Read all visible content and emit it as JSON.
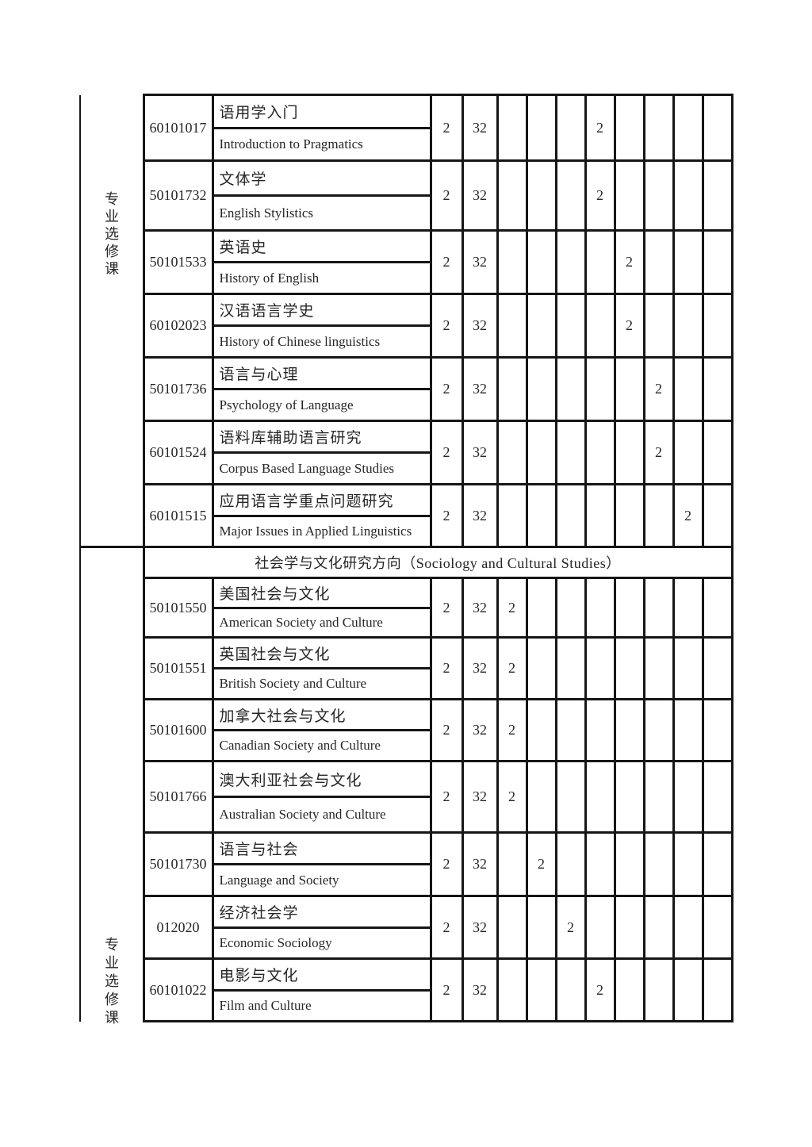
{
  "table": {
    "credits_value": "2",
    "hours_value": "32",
    "sections": [
      {
        "category_label": "专业选修课",
        "rows": [
          {
            "code": "60101017",
            "name_zh": "语用学入门",
            "name_en": "Introduction to Pragmatics",
            "credits": "2",
            "hours": "32",
            "sem": [
              "",
              "",
              "",
              "2",
              "",
              "",
              "",
              ""
            ]
          },
          {
            "code": "50101732",
            "name_zh": "文体学",
            "name_en": "English Stylistics",
            "credits": "2",
            "hours": "32",
            "sem": [
              "",
              "",
              "",
              "2",
              "",
              "",
              "",
              ""
            ]
          },
          {
            "code": "50101533",
            "name_zh": "英语史",
            "name_en": "History of English",
            "credits": "2",
            "hours": "32",
            "sem": [
              "",
              "",
              "",
              "",
              "2",
              "",
              "",
              ""
            ]
          },
          {
            "code": "60102023",
            "name_zh": "汉语语言学史",
            "name_en": "History of Chinese linguistics",
            "credits": "2",
            "hours": "32",
            "sem": [
              "",
              "",
              "",
              "",
              "2",
              "",
              "",
              ""
            ]
          },
          {
            "code": "50101736",
            "name_zh": "语言与心理",
            "name_en": "Psychology of Language",
            "credits": "2",
            "hours": "32",
            "sem": [
              "",
              "",
              "",
              "",
              "",
              "2",
              "",
              ""
            ]
          },
          {
            "code": "60101524",
            "name_zh": "语料库辅助语言研究",
            "name_en": "Corpus Based Language Studies",
            "credits": "2",
            "hours": "32",
            "sem": [
              "",
              "",
              "",
              "",
              "",
              "2",
              "",
              ""
            ]
          },
          {
            "code": "60101515",
            "name_zh": "应用语言学重点问题研究",
            "name_en": "Major Issues in Applied Linguistics",
            "credits": "2",
            "hours": "32",
            "sem": [
              "",
              "",
              "",
              "",
              "",
              "",
              "2",
              ""
            ]
          }
        ]
      },
      {
        "category_label": "专业选修课",
        "direction_header": "社会学与文化研究方向（Sociology and Cultural Studies）",
        "rows": [
          {
            "code": "50101550",
            "name_zh": "美国社会与文化",
            "name_en": "American Society and Culture",
            "credits": "2",
            "hours": "32",
            "sem": [
              "2",
              "",
              "",
              "",
              "",
              "",
              "",
              ""
            ]
          },
          {
            "code": "50101551",
            "name_zh": "英国社会与文化",
            "name_en": "British Society and Culture",
            "credits": "2",
            "hours": "32",
            "sem": [
              "2",
              "",
              "",
              "",
              "",
              "",
              "",
              ""
            ]
          },
          {
            "code": "50101600",
            "name_zh": "加拿大社会与文化",
            "name_en": "Canadian Society and Culture",
            "credits": "2",
            "hours": "32",
            "sem": [
              "2",
              "",
              "",
              "",
              "",
              "",
              "",
              ""
            ]
          },
          {
            "code": "50101766",
            "name_zh": "澳大利亚社会与文化",
            "name_en": "Australian Society and Culture",
            "credits": "2",
            "hours": "32",
            "sem": [
              "2",
              "",
              "",
              "",
              "",
              "",
              "",
              ""
            ]
          },
          {
            "code": "50101730",
            "name_zh": "语言与社会",
            "name_en": "Language and Society",
            "credits": "2",
            "hours": "32",
            "sem": [
              "",
              "2",
              "",
              "",
              "",
              "",
              "",
              ""
            ]
          },
          {
            "code": "012020",
            "name_zh": "经济社会学",
            "name_en": "Economic Sociology",
            "credits": "2",
            "hours": "32",
            "sem": [
              "",
              "",
              "2",
              "",
              "",
              "",
              "",
              ""
            ]
          },
          {
            "code": "60101022",
            "name_zh": "电影与文化",
            "name_en": "Film and Culture",
            "credits": "2",
            "hours": "32",
            "sem": [
              "",
              "",
              "",
              "2",
              "",
              "",
              "",
              ""
            ]
          }
        ]
      }
    ]
  }
}
